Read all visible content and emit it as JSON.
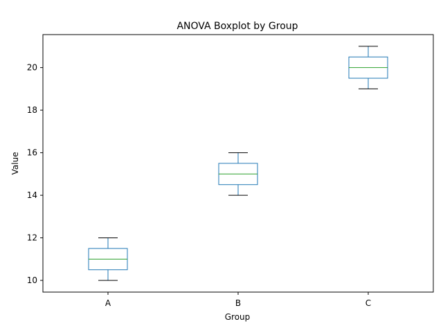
{
  "chart_data": {
    "type": "boxplot",
    "title": "ANOVA Boxplot by Group",
    "xlabel": "Group",
    "ylabel": "Value",
    "categories": [
      "A",
      "B",
      "C"
    ],
    "ylim": [
      9.45,
      21.55
    ],
    "yticks": [
      10,
      12,
      14,
      16,
      18,
      20
    ],
    "grid": false,
    "colors": {
      "box": "#1f77b4",
      "median": "#2ca02c",
      "cap": "#000000",
      "axis": "#000000"
    },
    "series": [
      {
        "category": "A",
        "min": 10,
        "q1": 10.5,
        "median": 11,
        "q3": 11.5,
        "max": 12
      },
      {
        "category": "B",
        "min": 14,
        "q1": 14.5,
        "median": 15,
        "q3": 15.5,
        "max": 16
      },
      {
        "category": "C",
        "min": 19,
        "q1": 19.5,
        "median": 20,
        "q3": 20.5,
        "max": 21
      }
    ]
  }
}
